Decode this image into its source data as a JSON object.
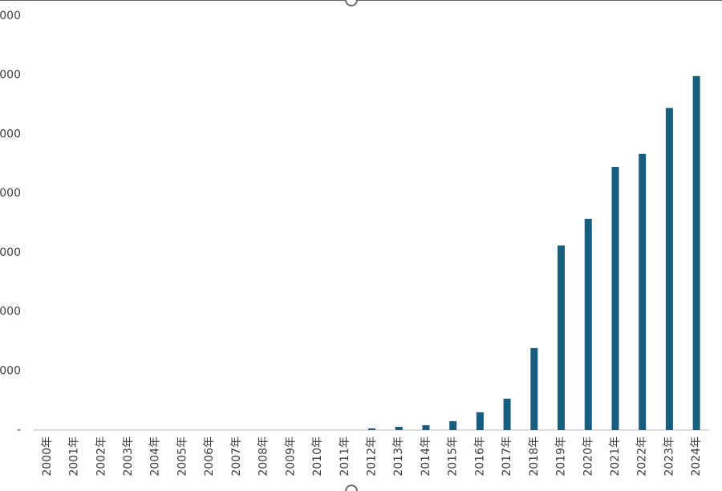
{
  "chart_data": {
    "type": "bar",
    "categories": [
      "2000年",
      "2001年",
      "2002年",
      "2003年",
      "2004年",
      "2005年",
      "2006年",
      "2007年",
      "2008年",
      "2009年",
      "2010年",
      "2011年",
      "2012年",
      "2013年",
      "2014年",
      "2015年",
      "2016年",
      "2017年",
      "2018年",
      "2019年",
      "2020年",
      "2021年",
      "2022年",
      "2023年",
      "2024年"
    ],
    "values": [
      0,
      0,
      0,
      0,
      0,
      0,
      0,
      0,
      0,
      0,
      0,
      0,
      27,
      54,
      81,
      150,
      300,
      530,
      1385,
      3120,
      3570,
      4450,
      4670,
      5445,
      5985
    ],
    "color": "#175e7e",
    "ylim": [
      0,
      7000
    ],
    "yticks": [
      {
        "value": 0,
        "label": "-"
      },
      {
        "value": 1000,
        "label": "000"
      },
      {
        "value": 2000,
        "label": "000"
      },
      {
        "value": 3000,
        "label": "000"
      },
      {
        "value": 4000,
        "label": "000"
      },
      {
        "value": 5000,
        "label": "000"
      },
      {
        "value": 6000,
        "label": "000"
      },
      {
        "value": 7000,
        "label": "000"
      }
    ],
    "grid": false
  }
}
